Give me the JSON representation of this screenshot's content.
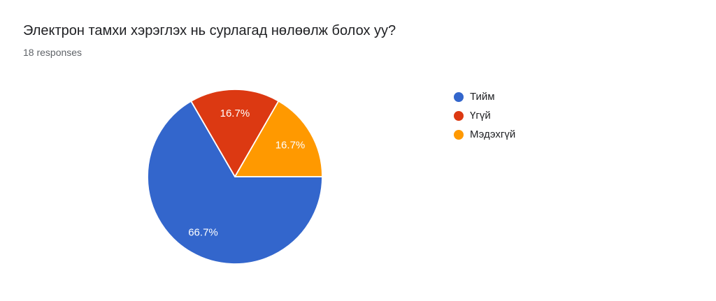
{
  "chart_data": {
    "type": "pie",
    "title": "Электрон тамхи хэрэглэх нь сурлагад нөлөөлж болох уу?",
    "subtitle": "18 responses",
    "legend_position": "right",
    "start_angle_deg_clockwise_from_top": 90,
    "label_text_color": "#ffffff",
    "slice_border_color": "#ffffff",
    "slices": [
      {
        "label": "Тийм",
        "percent_value": 66.7,
        "percent_label": "66.7%",
        "color": "#3366CC"
      },
      {
        "label": "Үгүй",
        "percent_value": 16.7,
        "percent_label": "16.7%",
        "color": "#DC3912"
      },
      {
        "label": "Мэдэхгүй",
        "percent_value": 16.7,
        "percent_label": "16.7%",
        "color": "#FF9900"
      }
    ]
  }
}
